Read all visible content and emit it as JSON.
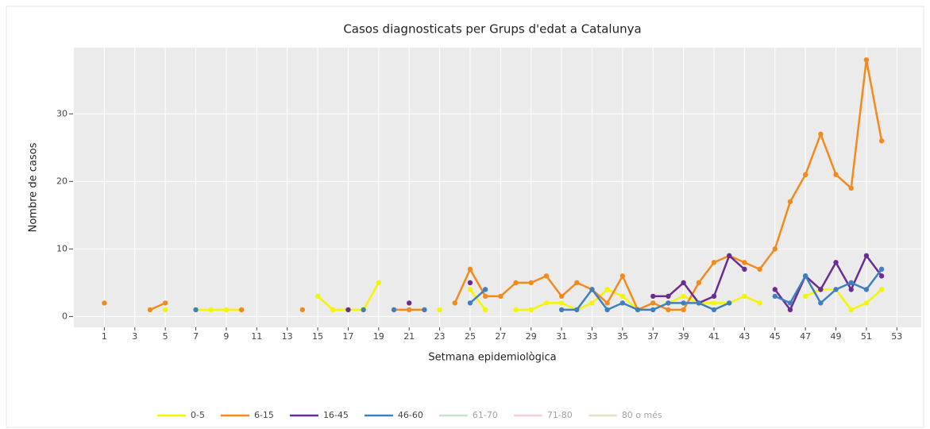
{
  "chart_data": {
    "type": "line",
    "title": "Casos diagnosticats per Grups d'edat a Catalunya",
    "x_label": "Setmana epidemiològica",
    "y_label": "Nombre de casos",
    "x": [
      1,
      2,
      3,
      4,
      5,
      6,
      7,
      8,
      9,
      10,
      11,
      12,
      13,
      14,
      15,
      16,
      17,
      18,
      19,
      20,
      21,
      22,
      23,
      24,
      25,
      26,
      27,
      28,
      29,
      30,
      31,
      32,
      33,
      34,
      35,
      36,
      37,
      38,
      39,
      40,
      41,
      42,
      43,
      44,
      45,
      46,
      47,
      48,
      49,
      50,
      51,
      52
    ],
    "series": [
      {
        "name": "0-5",
        "color": "#f5f500",
        "values": [
          null,
          null,
          null,
          null,
          1,
          null,
          1,
          1,
          1,
          1,
          null,
          null,
          null,
          null,
          3,
          1,
          1,
          1,
          5,
          null,
          null,
          null,
          1,
          null,
          4,
          1,
          null,
          1,
          1,
          2,
          2,
          1,
          2,
          4,
          3,
          1,
          1,
          2,
          3,
          2,
          2,
          2,
          3,
          2,
          null,
          null,
          3,
          4,
          4,
          1,
          2,
          4
        ]
      },
      {
        "name": "6-15",
        "color": "#f28a1c",
        "values": [
          2,
          null,
          null,
          1,
          2,
          null,
          null,
          null,
          null,
          1,
          null,
          null,
          null,
          1,
          null,
          null,
          null,
          null,
          null,
          1,
          1,
          1,
          null,
          2,
          7,
          3,
          3,
          5,
          5,
          6,
          3,
          5,
          4,
          2,
          6,
          1,
          2,
          1,
          1,
          5,
          8,
          9,
          8,
          7,
          10,
          17,
          21,
          27,
          21,
          19,
          38,
          26
        ]
      },
      {
        "name": "16-45",
        "color": "#6a2c91",
        "values": [
          null,
          null,
          null,
          null,
          null,
          null,
          null,
          null,
          null,
          null,
          null,
          null,
          null,
          null,
          null,
          null,
          1,
          null,
          null,
          null,
          2,
          null,
          null,
          null,
          5,
          null,
          null,
          null,
          null,
          null,
          null,
          null,
          null,
          null,
          null,
          null,
          3,
          3,
          5,
          2,
          3,
          9,
          7,
          null,
          4,
          1,
          6,
          4,
          8,
          4,
          9,
          6
        ]
      },
      {
        "name": "46-60",
        "color": "#3f7fbf",
        "values": [
          null,
          null,
          null,
          null,
          null,
          null,
          1,
          null,
          null,
          null,
          null,
          null,
          null,
          null,
          null,
          null,
          null,
          1,
          null,
          1,
          null,
          1,
          null,
          null,
          2,
          4,
          null,
          null,
          null,
          null,
          1,
          1,
          4,
          1,
          2,
          1,
          1,
          2,
          2,
          2,
          1,
          2,
          null,
          null,
          3,
          2,
          6,
          2,
          4,
          5,
          4,
          7
        ]
      },
      {
        "name": "61-70",
        "color": "#90c890",
        "visible": false
      },
      {
        "name": "71-80",
        "color": "#f39ac8",
        "visible": false
      },
      {
        "name": "80 o més",
        "color": "#d8c08c",
        "visible": false
      }
    ],
    "xlim": [
      -1,
      54.6
    ],
    "ylim": [
      -1.6,
      39.8
    ],
    "xticks": [
      1,
      3,
      5,
      7,
      9,
      11,
      13,
      15,
      17,
      19,
      21,
      23,
      25,
      27,
      29,
      31,
      33,
      35,
      37,
      39,
      41,
      43,
      45,
      47,
      49,
      51,
      53
    ],
    "yticks": [
      0,
      10,
      20,
      30
    ],
    "grid": true,
    "legend": "bottom"
  }
}
